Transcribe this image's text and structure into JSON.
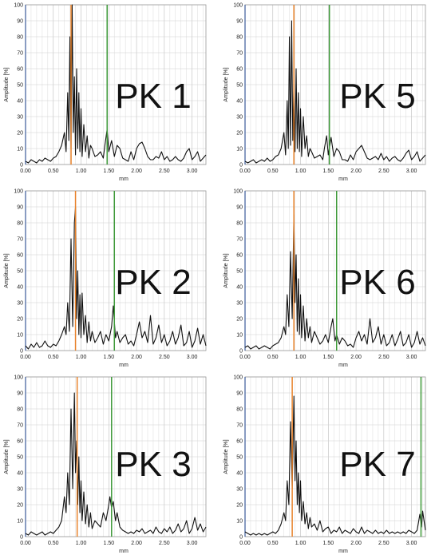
{
  "chart_data": [
    {
      "type": "line",
      "label": "PK 1",
      "xlabel": "mm",
      "ylabel": "Amplitude [%]",
      "xlim": [
        0,
        3.25
      ],
      "ylim": [
        0,
        100
      ],
      "xticks": [
        "0.00",
        "0.50",
        "1.00",
        "1.50",
        "2.00",
        "2.50",
        "3.00"
      ],
      "yticks": [
        "0",
        "10",
        "20",
        "30",
        "40",
        "50",
        "60",
        "70",
        "80",
        "90",
        "100"
      ],
      "grid": true,
      "markers": {
        "orange": 0.82,
        "green": 1.47
      },
      "series": [
        {
          "color": "#111111",
          "x": [
            0,
            0.05,
            0.1,
            0.15,
            0.2,
            0.25,
            0.3,
            0.35,
            0.4,
            0.45,
            0.5,
            0.55,
            0.6,
            0.65,
            0.7,
            0.73,
            0.76,
            0.78,
            0.8,
            0.82,
            0.84,
            0.86,
            0.88,
            0.9,
            0.92,
            0.94,
            0.96,
            0.98,
            1.0,
            1.02,
            1.05,
            1.08,
            1.11,
            1.14,
            1.17,
            1.2,
            1.25,
            1.3,
            1.35,
            1.4,
            1.43,
            1.47,
            1.5,
            1.55,
            1.6,
            1.65,
            1.7,
            1.75,
            1.8,
            1.85,
            1.9,
            1.95,
            2.0,
            2.05,
            2.1,
            2.15,
            2.2,
            2.25,
            2.3,
            2.35,
            2.4,
            2.45,
            2.5,
            2.55,
            2.6,
            2.65,
            2.7,
            2.75,
            2.8,
            2.85,
            2.9,
            2.95,
            3.0,
            3.05,
            3.1,
            3.15,
            3.2,
            3.25
          ],
          "y": [
            2,
            1,
            3,
            2,
            1,
            3,
            2,
            4,
            3,
            2,
            4,
            5,
            8,
            12,
            20,
            8,
            45,
            15,
            80,
            10,
            100,
            20,
            55,
            6,
            60,
            10,
            45,
            8,
            35,
            5,
            25,
            8,
            18,
            4,
            12,
            10,
            5,
            6,
            8,
            4,
            12,
            22,
            8,
            15,
            5,
            12,
            10,
            4,
            3,
            2,
            8,
            3,
            10,
            13,
            14,
            10,
            5,
            3,
            3,
            5,
            4,
            8,
            3,
            5,
            2,
            3,
            5,
            3,
            2,
            4,
            8,
            10,
            3,
            5,
            8,
            2,
            4,
            6
          ]
        }
      ]
    },
    {
      "type": "line",
      "label": "PK 5",
      "xlabel": "mm",
      "ylabel": "Amplitude [%]",
      "xlim": [
        0,
        3.25
      ],
      "ylim": [
        0,
        100
      ],
      "xticks": [
        "0.00",
        "0.50",
        "1.00",
        "1.50",
        "2.00",
        "2.50",
        "3.00"
      ],
      "yticks": [
        "0",
        "10",
        "20",
        "30",
        "40",
        "50",
        "60",
        "70",
        "80",
        "90",
        "100"
      ],
      "grid": true,
      "markers": {
        "orange": 0.88,
        "green": 1.52
      },
      "series": [
        {
          "color": "#111111",
          "x": [
            0,
            0.05,
            0.1,
            0.15,
            0.2,
            0.25,
            0.3,
            0.35,
            0.4,
            0.45,
            0.5,
            0.55,
            0.6,
            0.65,
            0.7,
            0.73,
            0.76,
            0.78,
            0.8,
            0.82,
            0.84,
            0.86,
            0.88,
            0.9,
            0.92,
            0.94,
            0.96,
            0.98,
            1.0,
            1.02,
            1.05,
            1.08,
            1.11,
            1.14,
            1.17,
            1.2,
            1.25,
            1.3,
            1.35,
            1.4,
            1.43,
            1.47,
            1.5,
            1.55,
            1.6,
            1.65,
            1.7,
            1.75,
            1.8,
            1.85,
            1.9,
            1.95,
            2.0,
            2.05,
            2.1,
            2.15,
            2.2,
            2.25,
            2.3,
            2.35,
            2.4,
            2.45,
            2.5,
            2.55,
            2.6,
            2.65,
            2.7,
            2.75,
            2.8,
            2.85,
            2.9,
            2.95,
            3.0,
            3.05,
            3.1,
            3.15,
            3.2,
            3.25
          ],
          "y": [
            2,
            1,
            2,
            3,
            1,
            2,
            3,
            2,
            4,
            2,
            3,
            5,
            6,
            10,
            20,
            6,
            40,
            10,
            80,
            12,
            90,
            15,
            50,
            8,
            60,
            10,
            45,
            8,
            35,
            5,
            30,
            10,
            18,
            5,
            10,
            8,
            4,
            5,
            6,
            3,
            10,
            18,
            6,
            17,
            5,
            10,
            8,
            3,
            3,
            2,
            6,
            3,
            8,
            10,
            12,
            8,
            4,
            3,
            4,
            5,
            3,
            7,
            3,
            5,
            2,
            4,
            5,
            3,
            2,
            4,
            7,
            9,
            3,
            5,
            8,
            2,
            4,
            6
          ]
        }
      ]
    },
    {
      "type": "line",
      "label": "PK 2",
      "xlabel": "mm",
      "ylabel": "Amplitude [%]",
      "xlim": [
        0,
        3.25
      ],
      "ylim": [
        0,
        100
      ],
      "xticks": [
        "0.00",
        "0.50",
        "1.00",
        "1.50",
        "2.00",
        "2.50",
        "3.00"
      ],
      "yticks": [
        "0",
        "10",
        "20",
        "30",
        "40",
        "50",
        "60",
        "70",
        "80",
        "90",
        "100"
      ],
      "grid": true,
      "markers": {
        "orange": 0.9,
        "green": 1.6
      },
      "series": [
        {
          "color": "#111111",
          "x": [
            0,
            0.05,
            0.1,
            0.15,
            0.2,
            0.25,
            0.3,
            0.35,
            0.4,
            0.45,
            0.5,
            0.55,
            0.6,
            0.65,
            0.7,
            0.73,
            0.76,
            0.79,
            0.82,
            0.85,
            0.88,
            0.9,
            0.92,
            0.94,
            0.96,
            0.98,
            1.0,
            1.02,
            1.05,
            1.08,
            1.11,
            1.14,
            1.17,
            1.2,
            1.25,
            1.3,
            1.35,
            1.4,
            1.45,
            1.5,
            1.55,
            1.58,
            1.62,
            1.65,
            1.7,
            1.75,
            1.8,
            1.85,
            1.9,
            1.95,
            2.0,
            2.05,
            2.1,
            2.15,
            2.2,
            2.25,
            2.3,
            2.35,
            2.4,
            2.45,
            2.5,
            2.55,
            2.6,
            2.65,
            2.7,
            2.75,
            2.8,
            2.85,
            2.9,
            2.95,
            3.0,
            3.05,
            3.1,
            3.15,
            3.2,
            3.25
          ],
          "y": [
            3,
            1,
            4,
            2,
            5,
            2,
            3,
            6,
            3,
            2,
            4,
            3,
            6,
            10,
            15,
            10,
            30,
            12,
            70,
            15,
            80,
            90,
            20,
            50,
            10,
            35,
            8,
            36,
            10,
            22,
            5,
            18,
            6,
            12,
            5,
            8,
            12,
            4,
            10,
            6,
            15,
            28,
            8,
            12,
            5,
            8,
            10,
            4,
            6,
            3,
            10,
            18,
            8,
            12,
            5,
            22,
            4,
            8,
            16,
            5,
            10,
            3,
            6,
            12,
            4,
            8,
            16,
            3,
            5,
            12,
            2,
            6,
            14,
            4,
            10,
            3
          ]
        }
      ]
    },
    {
      "type": "line",
      "label": "PK 6",
      "xlabel": "mm",
      "ylabel": "Amplitude [%]",
      "xlim": [
        0,
        3.25
      ],
      "ylim": [
        0,
        100
      ],
      "xticks": [
        "0.00",
        "0.50",
        "1.00",
        "1.50",
        "2.00",
        "2.50",
        "3.00"
      ],
      "yticks": [
        "0",
        "10",
        "20",
        "30",
        "40",
        "50",
        "60",
        "70",
        "80",
        "90",
        "100"
      ],
      "grid": true,
      "markers": {
        "orange": 0.88,
        "green": 1.65
      },
      "series": [
        {
          "color": "#111111",
          "x": [
            0,
            0.05,
            0.1,
            0.15,
            0.2,
            0.25,
            0.3,
            0.35,
            0.4,
            0.45,
            0.5,
            0.55,
            0.6,
            0.65,
            0.7,
            0.73,
            0.76,
            0.79,
            0.82,
            0.85,
            0.88,
            0.9,
            0.92,
            0.94,
            0.96,
            0.98,
            1.0,
            1.02,
            1.05,
            1.08,
            1.11,
            1.14,
            1.17,
            1.2,
            1.25,
            1.3,
            1.35,
            1.4,
            1.45,
            1.5,
            1.55,
            1.58,
            1.62,
            1.65,
            1.7,
            1.75,
            1.8,
            1.85,
            1.9,
            1.95,
            2.0,
            2.05,
            2.1,
            2.15,
            2.2,
            2.25,
            2.3,
            2.35,
            2.4,
            2.45,
            2.5,
            2.55,
            2.6,
            2.65,
            2.7,
            2.75,
            2.8,
            2.85,
            2.9,
            2.95,
            3.0,
            3.05,
            3.1,
            3.15,
            3.2,
            3.25
          ],
          "y": [
            2,
            3,
            1,
            2,
            3,
            1,
            2,
            3,
            2,
            1,
            3,
            4,
            5,
            8,
            15,
            10,
            35,
            15,
            62,
            20,
            85,
            30,
            60,
            12,
            45,
            10,
            35,
            8,
            28,
            6,
            20,
            8,
            15,
            5,
            12,
            8,
            4,
            6,
            10,
            5,
            15,
            20,
            6,
            10,
            4,
            8,
            6,
            3,
            4,
            2,
            8,
            12,
            6,
            10,
            4,
            20,
            5,
            8,
            15,
            4,
            10,
            3,
            5,
            10,
            3,
            7,
            12,
            3,
            5,
            10,
            2,
            5,
            12,
            4,
            8,
            3
          ]
        }
      ]
    },
    {
      "type": "line",
      "label": "PK 3",
      "xlabel": "mm",
      "ylabel": "Amplitude [%]",
      "xlim": [
        0,
        3.25
      ],
      "ylim": [
        0,
        100
      ],
      "xticks": [
        "0.00",
        "0.50",
        "1.00",
        "1.50",
        "2.00",
        "2.50",
        "3.00"
      ],
      "yticks": [
        "0",
        "10",
        "20",
        "30",
        "40",
        "50",
        "60",
        "70",
        "80",
        "90",
        "100"
      ],
      "grid": true,
      "markers": {
        "orange": 0.93,
        "green": 1.55
      },
      "series": [
        {
          "color": "#111111",
          "x": [
            0,
            0.05,
            0.1,
            0.15,
            0.2,
            0.25,
            0.3,
            0.35,
            0.4,
            0.45,
            0.5,
            0.55,
            0.6,
            0.65,
            0.7,
            0.73,
            0.76,
            0.79,
            0.82,
            0.85,
            0.88,
            0.9,
            0.92,
            0.94,
            0.96,
            0.98,
            1.0,
            1.02,
            1.05,
            1.08,
            1.11,
            1.14,
            1.17,
            1.2,
            1.25,
            1.3,
            1.35,
            1.4,
            1.45,
            1.5,
            1.52,
            1.55,
            1.58,
            1.62,
            1.65,
            1.7,
            1.75,
            1.8,
            1.85,
            1.9,
            1.95,
            2.0,
            2.05,
            2.1,
            2.15,
            2.2,
            2.25,
            2.3,
            2.35,
            2.4,
            2.45,
            2.5,
            2.55,
            2.6,
            2.65,
            2.7,
            2.75,
            2.8,
            2.85,
            2.9,
            2.95,
            3.0,
            3.05,
            3.1,
            3.15,
            3.2,
            3.25
          ],
          "y": [
            2,
            1,
            3,
            2,
            1,
            2,
            3,
            1,
            2,
            3,
            2,
            4,
            6,
            10,
            25,
            15,
            40,
            20,
            80,
            30,
            90,
            40,
            60,
            20,
            50,
            15,
            35,
            10,
            28,
            8,
            20,
            6,
            15,
            5,
            10,
            8,
            6,
            15,
            10,
            20,
            25,
            18,
            22,
            10,
            15,
            6,
            4,
            3,
            2,
            3,
            2,
            4,
            3,
            5,
            2,
            3,
            4,
            2,
            6,
            3,
            2,
            5,
            3,
            6,
            2,
            4,
            8,
            3,
            5,
            10,
            2,
            5,
            12,
            4,
            8,
            3,
            6
          ]
        }
      ]
    },
    {
      "type": "line",
      "label": "PK 7",
      "xlabel": "mm",
      "ylabel": "Amplitude [%]",
      "xlim": [
        0,
        3.25
      ],
      "ylim": [
        0,
        100
      ],
      "xticks": [
        "0.00",
        "0.50",
        "1.00",
        "1.50",
        "2.00",
        "2.50",
        "3.00"
      ],
      "yticks": [
        "0",
        "10",
        "20",
        "30",
        "40",
        "50",
        "60",
        "70",
        "80",
        "90",
        "100"
      ],
      "grid": true,
      "markers": {
        "orange": 0.85,
        "green": 3.17
      },
      "series": [
        {
          "color": "#111111",
          "x": [
            0,
            0.05,
            0.1,
            0.15,
            0.2,
            0.25,
            0.3,
            0.35,
            0.4,
            0.45,
            0.5,
            0.55,
            0.6,
            0.65,
            0.7,
            0.73,
            0.76,
            0.79,
            0.82,
            0.85,
            0.88,
            0.9,
            0.92,
            0.94,
            0.96,
            0.98,
            1.0,
            1.02,
            1.05,
            1.08,
            1.11,
            1.14,
            1.17,
            1.2,
            1.25,
            1.3,
            1.35,
            1.4,
            1.45,
            1.5,
            1.55,
            1.6,
            1.65,
            1.7,
            1.75,
            1.8,
            1.85,
            1.9,
            1.95,
            2.0,
            2.05,
            2.1,
            2.15,
            2.2,
            2.25,
            2.3,
            2.35,
            2.4,
            2.45,
            2.5,
            2.55,
            2.6,
            2.65,
            2.7,
            2.75,
            2.8,
            2.85,
            2.9,
            2.95,
            3.0,
            3.05,
            3.1,
            3.12,
            3.15,
            3.18,
            3.2,
            3.25
          ],
          "y": [
            3,
            2,
            1,
            2,
            1,
            2,
            1,
            2,
            1,
            2,
            3,
            2,
            4,
            8,
            15,
            10,
            35,
            20,
            72,
            30,
            88,
            35,
            60,
            20,
            40,
            15,
            35,
            10,
            22,
            8,
            15,
            5,
            12,
            6,
            8,
            4,
            10,
            3,
            5,
            6,
            2,
            4,
            3,
            6,
            2,
            4,
            3,
            2,
            5,
            3,
            2,
            6,
            2,
            4,
            3,
            2,
            4,
            2,
            3,
            2,
            4,
            2,
            3,
            2,
            3,
            2,
            3,
            2,
            4,
            3,
            2,
            4,
            8,
            14,
            6,
            16,
            4
          ]
        }
      ]
    }
  ]
}
